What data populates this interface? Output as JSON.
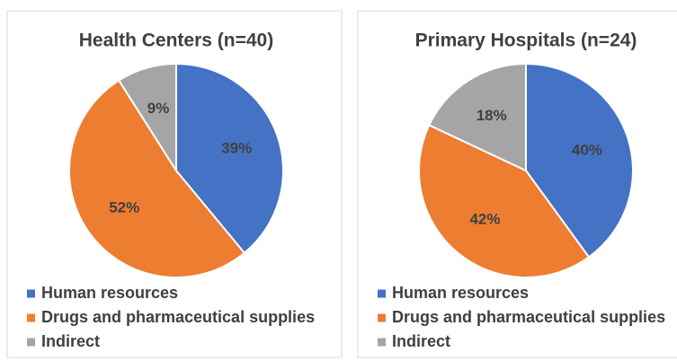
{
  "chart_data": [
    {
      "type": "pie",
      "title": "Health Centers (n=40)",
      "categories": [
        "Human resources",
        "Drugs and pharmaceutical supplies",
        "Indirect"
      ],
      "values": [
        39,
        52,
        9
      ],
      "value_labels": [
        "39%",
        "52%",
        "9%"
      ],
      "colors": [
        "#4472c4",
        "#ed7d31",
        "#a5a5a5"
      ]
    },
    {
      "type": "pie",
      "title": "Primary Hospitals (n=24)",
      "categories": [
        "Human resources",
        "Drugs and pharmaceutical supplies",
        "Indirect"
      ],
      "values": [
        40,
        42,
        18
      ],
      "value_labels": [
        "40%",
        "42%",
        "18%"
      ],
      "colors": [
        "#4472c4",
        "#ed7d31",
        "#a5a5a5"
      ]
    }
  ]
}
